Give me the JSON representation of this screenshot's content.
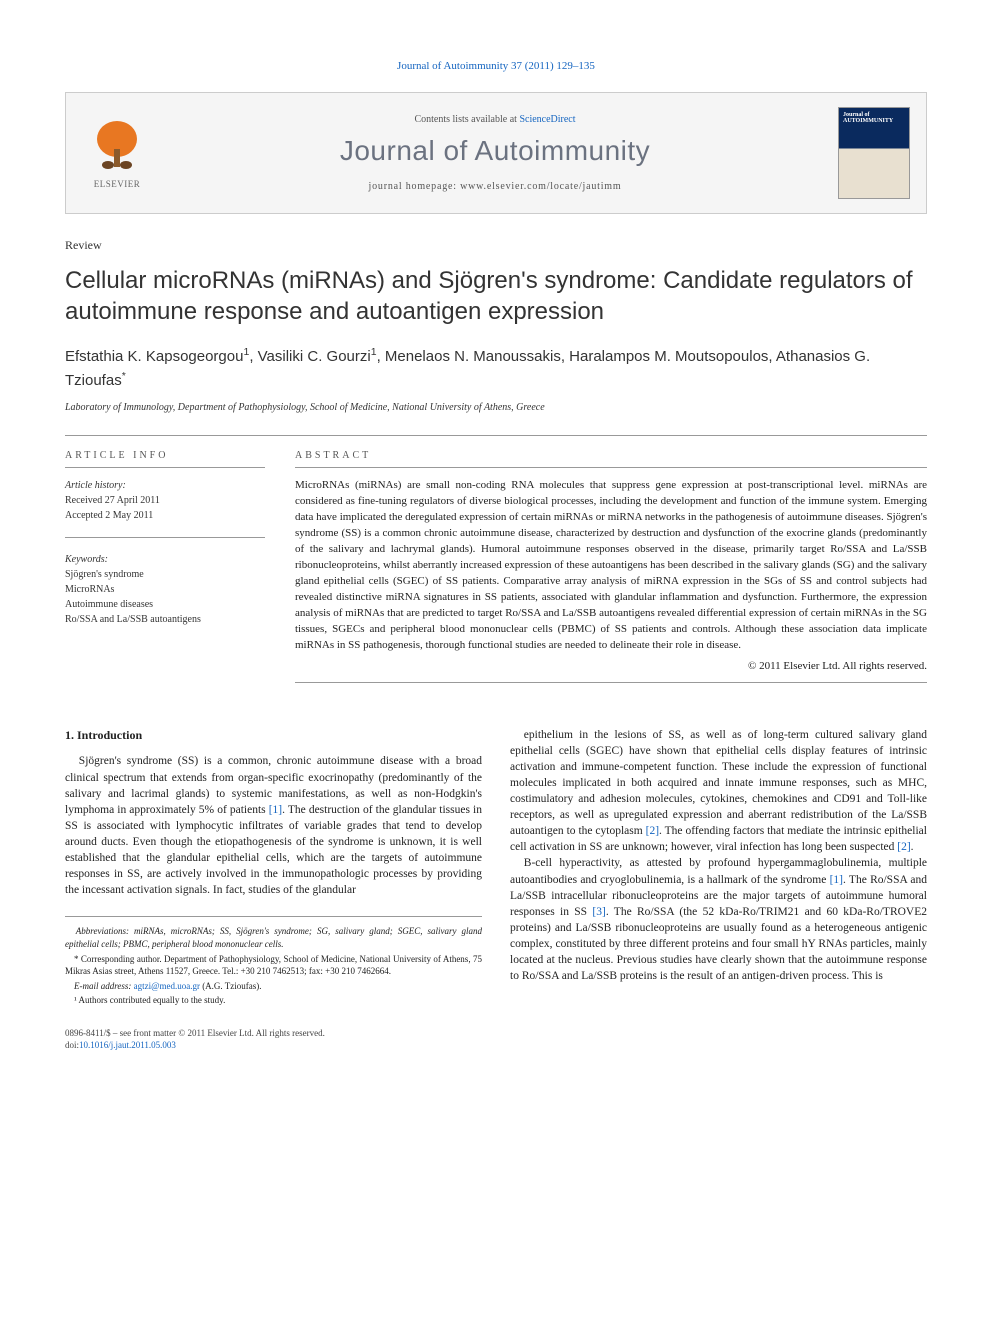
{
  "header": {
    "citation": "Journal of Autoimmunity 37 (2011) 129–135"
  },
  "masthead": {
    "publisher_name": "ELSEVIER",
    "contents_prefix": "Contents lists available at ",
    "contents_link": "ScienceDirect",
    "journal_title": "Journal of Autoimmunity",
    "homepage_label": "journal homepage: ",
    "homepage_url": "www.elsevier.com/locate/jautimm",
    "cover_label_top": "Journal of",
    "cover_label_main": "AUTOIMMUNITY"
  },
  "article": {
    "type": "Review",
    "title": "Cellular microRNAs (miRNAs) and Sjögren's syndrome: Candidate regulators of autoimmune response and autoantigen expression",
    "authors_html": "Efstathia K. Kapsogeorgou<sup>1</sup>, Vasiliki C. Gourzi<sup>1</sup>, Menelaos N. Manoussakis, Haralampos M. Moutsopoulos, Athanasios G. Tzioufas<sup>*</sup>",
    "affiliation": "Laboratory of Immunology, Department of Pathophysiology, School of Medicine, National University of Athens, Greece"
  },
  "article_info": {
    "heading": "ARTICLE INFO",
    "history_label": "Article history:",
    "received": "Received 27 April 2011",
    "accepted": "Accepted 2 May 2011",
    "keywords_label": "Keywords:",
    "keywords": [
      "Sjögren's syndrome",
      "MicroRNAs",
      "Autoimmune diseases",
      "Ro/SSA and La/SSB autoantigens"
    ]
  },
  "abstract": {
    "heading": "ABSTRACT",
    "text": "MicroRNAs (miRNAs) are small non-coding RNA molecules that suppress gene expression at post-transcriptional level. miRNAs are considered as fine-tuning regulators of diverse biological processes, including the development and function of the immune system. Emerging data have implicated the deregulated expression of certain miRNAs or miRNA networks in the pathogenesis of autoimmune diseases. Sjögren's syndrome (SS) is a common chronic autoimmune disease, characterized by destruction and dysfunction of the exocrine glands (predominantly of the salivary and lachrymal glands). Humoral autoimmune responses observed in the disease, primarily target Ro/SSA and La/SSB ribonucleoproteins, whilst aberrantly increased expression of these autoantigens has been described in the salivary glands (SG) and the salivary gland epithelial cells (SGEC) of SS patients. Comparative array analysis of miRNA expression in the SGs of SS and control subjects had revealed distinctive miRNA signatures in SS patients, associated with glandular inflammation and dysfunction. Furthermore, the expression analysis of miRNAs that are predicted to target Ro/SSA and La/SSB autoantigens revealed differential expression of certain miRNAs in the SG tissues, SGECs and peripheral blood mononuclear cells (PBMC) of SS patients and controls. Although these association data implicate miRNAs in SS pathogenesis, thorough functional studies are needed to delineate their role in disease.",
    "copyright": "© 2011 Elsevier Ltd. All rights reserved."
  },
  "body": {
    "section1_heading": "1. Introduction",
    "col1_p1": "Sjögren's syndrome (SS) is a common, chronic autoimmune disease with a broad clinical spectrum that extends from organ-specific exocrinopathy (predominantly of the salivary and lacrimal glands) to systemic manifestations, as well as non-Hodgkin's lymphoma in approximately 5% of patients [1]. The destruction of the glandular tissues in SS is associated with lymphocytic infiltrates of variable grades that tend to develop around ducts. Even though the etiopathogenesis of the syndrome is unknown, it is well established that the glandular epithelial cells, which are the targets of autoimmune responses in SS, are actively involved in the immunopathologic processes by providing the incessant activation signals. In fact, studies of the glandular",
    "col2_p1": "epithelium in the lesions of SS, as well as of long-term cultured salivary gland epithelial cells (SGEC) have shown that epithelial cells display features of intrinsic activation and immune-competent function. These include the expression of functional molecules implicated in both acquired and innate immune responses, such as MHC, costimulatory and adhesion molecules, cytokines, chemokines and CD91 and Toll-like receptors, as well as upregulated expression and aberrant redistribution of the La/SSB autoantigen to the cytoplasm [2]. The offending factors that mediate the intrinsic epithelial cell activation in SS are unknown; however, viral infection has long been suspected [2].",
    "col2_p2": "B-cell hyperactivity, as attested by profound hypergammaglobulinemia, multiple autoantibodies and cryoglobulinemia, is a hallmark of the syndrome [1]. The Ro/SSA and La/SSB intracellular ribonucleoproteins are the major targets of autoimmune humoral responses in SS [3]. The Ro/SSA (the 52 kDa-Ro/TRIM21 and 60 kDa-Ro/TROVE2 proteins) and La/SSB ribonucleoproteins are usually found as a heterogeneous antigenic complex, constituted by three different proteins and four small hY RNAs particles, mainly located at the nucleus. Previous studies have clearly shown that the autoimmune response to Ro/SSA and La/SSB proteins is the result of an antigen-driven process. This is"
  },
  "footnotes": {
    "abbreviations": "Abbreviations: miRNAs, microRNAs; SS, Sjögren's syndrome; SG, salivary gland; SGEC, salivary gland epithelial cells; PBMC, peripheral blood mononuclear cells.",
    "corresponding": "* Corresponding author. Department of Pathophysiology, School of Medicine, National University of Athens, 75 Mikras Asias street, Athens 11527, Greece. Tel.: +30 210 7462513; fax: +30 210 7462664.",
    "email_label": "E-mail address: ",
    "email": "agtzi@med.uoa.gr",
    "email_attribution": " (A.G. Tzioufas).",
    "equal": "¹ Authors contributed equally to the study."
  },
  "footer": {
    "issn": "0896-8411/$ – see front matter © 2011 Elsevier Ltd. All rights reserved.",
    "doi_label": "doi:",
    "doi": "10.1016/j.jaut.2011.05.003"
  }
}
